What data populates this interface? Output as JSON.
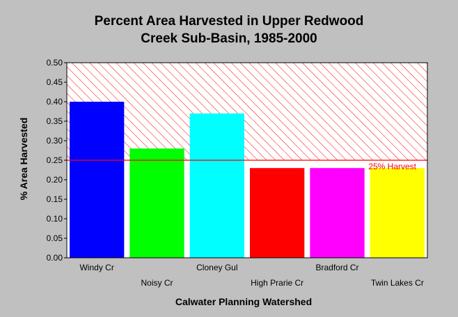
{
  "chart_data": {
    "type": "bar",
    "title_lines": [
      "Percent Area Harvested in Upper Redwood",
      "Creek Sub-Basin, 1985-2000"
    ],
    "xlabel": "Calwater Planning Watershed",
    "ylabel": "% Area Harvested",
    "categories": [
      "Windy Cr",
      "Noisy Cr",
      "Cloney Gul",
      "High Prarie Cr",
      "Bradford Cr",
      "Twin Lakes Cr"
    ],
    "values": [
      0.4,
      0.28,
      0.37,
      0.23,
      0.23,
      0.23
    ],
    "colors": [
      "#0000ff",
      "#00ff00",
      "#00ffff",
      "#ff0000",
      "#ff00ff",
      "#ffff00"
    ],
    "ylim": [
      0,
      0.5
    ],
    "yticks": [
      "0.00",
      "0.05",
      "0.10",
      "0.15",
      "0.20",
      "0.25",
      "0.30",
      "0.35",
      "0.40",
      "0.45",
      "0.50"
    ],
    "threshold": {
      "value": 0.25,
      "label": "25% Harvest",
      "color": "#ff0000"
    },
    "grid": false
  }
}
